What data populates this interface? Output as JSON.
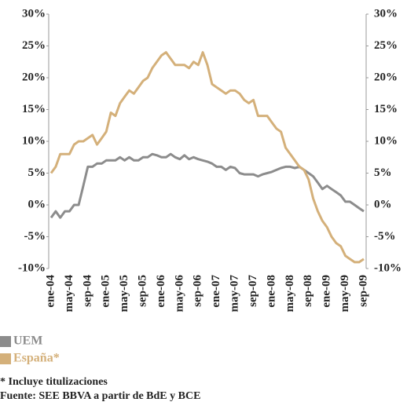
{
  "chart_data": {
    "type": "line",
    "categories": [
      "ene-04",
      null,
      null,
      null,
      "may-04",
      null,
      null,
      null,
      "sep-04",
      null,
      null,
      null,
      "ene-05",
      null,
      null,
      null,
      "may-05",
      null,
      null,
      null,
      "sep-05",
      null,
      null,
      null,
      "ene-06",
      null,
      null,
      null,
      "may-06",
      null,
      null,
      null,
      "sep-06",
      null,
      null,
      null,
      "ene-07",
      null,
      null,
      null,
      "may-07",
      null,
      null,
      null,
      "sep-07",
      null,
      null,
      null,
      "ene-08",
      null,
      null,
      null,
      "may-08",
      null,
      null,
      null,
      "sep-08",
      null,
      null,
      null,
      "ene-09",
      null,
      null,
      null,
      "may-09",
      null,
      null,
      null,
      "sep-09"
    ],
    "series": [
      {
        "name": "UEM",
        "color": "#8c8c8c",
        "values": [
          -2,
          -1,
          -2,
          -1,
          -1,
          0,
          0,
          3,
          6,
          6,
          6.5,
          6.5,
          7,
          7,
          7,
          7.5,
          7,
          7.5,
          7,
          7,
          7.5,
          7.5,
          8,
          7.8,
          7.5,
          7.5,
          8,
          7.5,
          7.2,
          7.8,
          7.2,
          7.5,
          7.2,
          7,
          6.8,
          6.5,
          6,
          6,
          5.5,
          6,
          5.8,
          5,
          4.8,
          4.8,
          4.8,
          4.5,
          4.8,
          5,
          5.2,
          5.5,
          5.8,
          6,
          6,
          5.8,
          6,
          5.5,
          5,
          4.5,
          3.5,
          2.5,
          3,
          2.5,
          2,
          1.5,
          0.5,
          0.5,
          0,
          -0.5,
          -1
        ]
      },
      {
        "name": "España*",
        "color": "#d4b07a",
        "values": [
          5,
          6,
          8,
          8,
          8,
          9.5,
          10,
          10,
          10.5,
          11,
          9.5,
          10.5,
          11.5,
          14.5,
          14,
          16,
          17,
          18,
          17.5,
          18.5,
          19.5,
          20,
          21.5,
          22.5,
          23.5,
          24,
          23,
          22,
          22,
          22,
          21.5,
          22.5,
          22,
          24,
          22,
          19,
          18.5,
          18,
          17.5,
          18,
          18,
          17.5,
          16.5,
          16,
          16.5,
          14,
          14,
          14,
          13,
          12,
          11.5,
          9,
          8,
          7,
          6,
          5.5,
          4,
          1,
          -1,
          -2.5,
          -3.5,
          -5,
          -6,
          -6.5,
          -8,
          -8.5,
          -9,
          -9,
          -8.5
        ]
      }
    ],
    "ylim": [
      -10,
      30
    ],
    "yticks": [
      {
        "value": -10,
        "label": "-10%"
      },
      {
        "value": -5,
        "label": "-5%"
      },
      {
        "value": 0,
        "label": "0%"
      },
      {
        "value": 5,
        "label": "5%"
      },
      {
        "value": 10,
        "label": "10%"
      },
      {
        "value": 15,
        "label": "15%"
      },
      {
        "value": 20,
        "label": "20%"
      },
      {
        "value": 25,
        "label": "25%"
      },
      {
        "value": 30,
        "label": "30%"
      }
    ],
    "y2lim": [
      -10,
      30
    ],
    "y2ticks": [
      {
        "value": -10,
        "label": "-10%"
      },
      {
        "value": -5,
        "label": "-5%"
      },
      {
        "value": 0,
        "label": "0%"
      },
      {
        "value": 5,
        "label": "5%"
      },
      {
        "value": 10,
        "label": "10%"
      },
      {
        "value": 15,
        "label": "15%"
      },
      {
        "value": 20,
        "label": "20%"
      },
      {
        "value": 25,
        "label": "25%"
      },
      {
        "value": 30,
        "label": "30%"
      }
    ],
    "notes": [
      "* Incluye titulizaciones",
      "Fuente: SEE BBVA a partir de BdE y BCE"
    ]
  }
}
